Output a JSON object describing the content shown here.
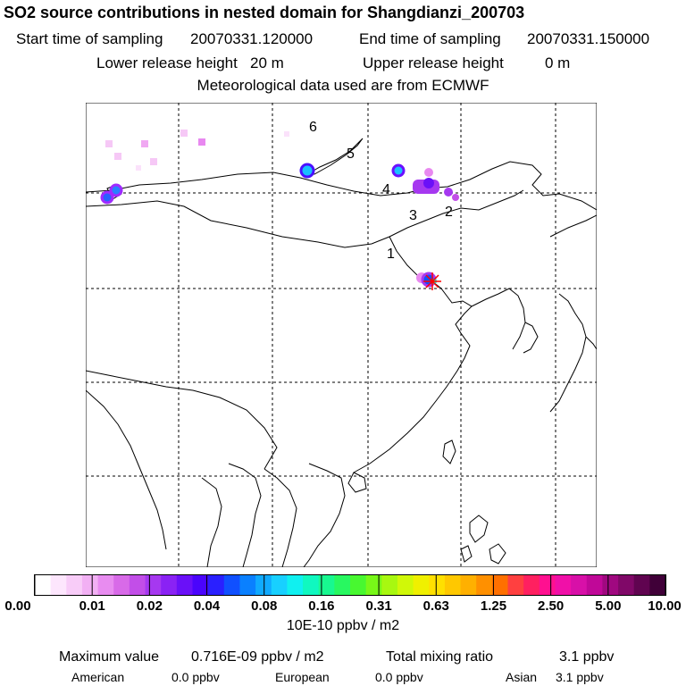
{
  "header": {
    "title": "SO2 source contributions in nested domain for Shangdianzi_200703",
    "start_label": "Start time of sampling",
    "start_value": "20070331.120000",
    "end_label": "End time of sampling",
    "end_value": "20070331.150000",
    "lower_label": "Lower release height",
    "lower_value": "20 m",
    "upper_label": "Upper release height",
    "upper_value": "0 m",
    "met": "Meteorological data used are from ECMWF"
  },
  "map": {
    "region_labels": [
      "1",
      "2",
      "3",
      "4",
      "5",
      "6"
    ],
    "station_marker": "star-marker"
  },
  "colorbar": {
    "ticks": [
      "0.00",
      "0.01",
      "0.02",
      "0.04",
      "0.08",
      "0.16",
      "0.31",
      "0.63",
      "1.25",
      "2.50",
      "5.00",
      "10.00"
    ],
    "colors": [
      "#ffffff",
      "#fde6fd",
      "#f8ccf8",
      "#f2b0f4",
      "#e88cf0",
      "#d86ae8",
      "#c24ee8",
      "#a638f0",
      "#8a22f4",
      "#6a10f8",
      "#4a04fc",
      "#2a20ff",
      "#1050ff",
      "#0a80ff",
      "#10aaff",
      "#18d0ff",
      "#10f0f0",
      "#10f8c0",
      "#18f890",
      "#28f860",
      "#48f830",
      "#78f818",
      "#a8f810",
      "#d0f808",
      "#f0f000",
      "#ffe000",
      "#ffc800",
      "#ffb000",
      "#ff9000",
      "#ff7000",
      "#ff4040",
      "#ff2060",
      "#ff1090",
      "#f010a8",
      "#d810a8",
      "#c00898",
      "#a00880",
      "#800868",
      "#600450",
      "#400038"
    ],
    "units": "10E-10 ppbv / m2"
  },
  "stats": {
    "max_label": "Maximum value",
    "max_value": "0.716E-09 ppbv / m2",
    "total_label": "Total mixing ratio",
    "total_value": "3.1 ppbv",
    "american_label": "American",
    "american_value": "0.0 ppbv",
    "european_label": "European",
    "european_value": "0.0 ppbv",
    "asian_label": "Asian",
    "asian_value": "3.1 ppbv"
  }
}
